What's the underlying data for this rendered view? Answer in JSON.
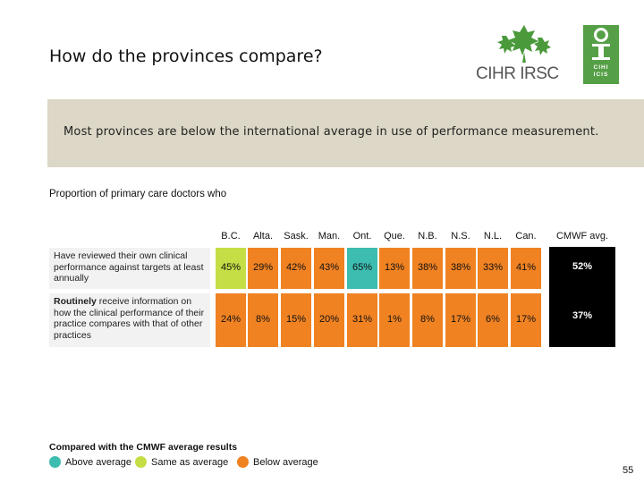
{
  "title": "How do the provinces compare?",
  "banner_text": "Most provinces are below the international average in use of performance measurement.",
  "subtitle": "Proportion of primary care doctors who",
  "logos": {
    "cihr_text": "CIHR IRSC",
    "cihi_letters_top": "CIHI",
    "cihi_letters_bottom": "ICIS"
  },
  "colors": {
    "above": "#3dbcb0",
    "same": "#c5de46",
    "below": "#f08222",
    "avg_bg": "#000000",
    "banner": "#dcd7c6"
  },
  "table": {
    "columns": [
      "B.C.",
      "Alta.",
      "Sask.",
      "Man.",
      "Ont.",
      "Que.",
      "N.B.",
      "N.S.",
      "N.L.",
      "Can.",
      "CMWF avg."
    ],
    "rows": [
      {
        "label_bold": "",
        "label_rest": "Have reviewed their own clinical performance against targets at least annually",
        "values": [
          "45%",
          "29%",
          "42%",
          "43%",
          "65%",
          "13%",
          "38%",
          "38%",
          "33%",
          "41%",
          "52%"
        ],
        "status": [
          "same",
          "below",
          "below",
          "below",
          "above",
          "below",
          "below",
          "below",
          "below",
          "below",
          "avg"
        ]
      },
      {
        "label_bold": "Routinely",
        "label_rest": " receive information on how the clinical performance of their practice compares with that of other practices",
        "values": [
          "24%",
          "8%",
          "15%",
          "20%",
          "31%",
          "1%",
          "8%",
          "17%",
          "6%",
          "17%",
          "37%"
        ],
        "status": [
          "below",
          "below",
          "below",
          "below",
          "below",
          "below",
          "below",
          "below",
          "below",
          "below",
          "avg"
        ]
      }
    ]
  },
  "legend": {
    "title": "Compared with the CMWF average results",
    "items": [
      {
        "label": "Above average",
        "status": "above"
      },
      {
        "label": "Same as average",
        "status": "same"
      },
      {
        "label": "Below average",
        "status": "below"
      }
    ]
  },
  "page_number": "55"
}
